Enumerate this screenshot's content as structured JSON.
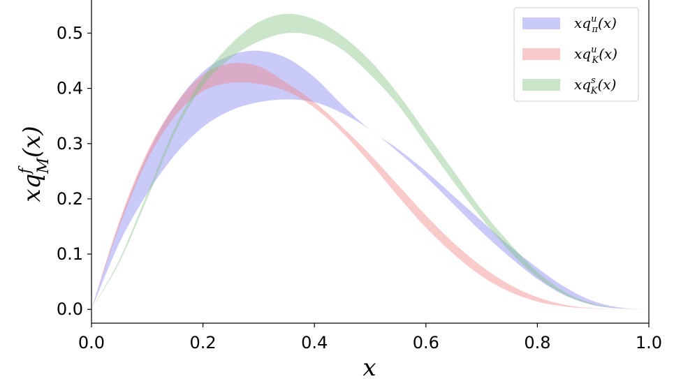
{
  "chart_data": {
    "type": "area",
    "title": "",
    "xlabel": "x",
    "ylabel": {
      "base": "xq",
      "sup": "f",
      "sub": "M",
      "tail": "(x)"
    },
    "xlim": [
      0.0,
      1.0
    ],
    "ylim": [
      -0.025,
      0.56
    ],
    "xticks": [
      "0.0",
      "0.2",
      "0.4",
      "0.6",
      "0.8",
      "1.0"
    ],
    "yticks": [
      "0.0",
      "0.1",
      "0.2",
      "0.3",
      "0.4",
      "0.5"
    ],
    "grid": false,
    "legend_position": "top-right",
    "x": [
      0.0,
      0.05,
      0.1,
      0.15,
      0.2,
      0.25,
      0.3,
      0.35,
      0.4,
      0.45,
      0.5,
      0.55,
      0.6,
      0.65,
      0.7,
      0.75,
      0.8,
      0.85,
      0.9,
      0.95,
      1.0
    ],
    "series": [
      {
        "label": {
          "base": "xq",
          "sup": "u",
          "sub": "π",
          "tail": "(x)"
        },
        "color": "#8080f0",
        "lower": [
          0.0,
          0.12,
          0.21,
          0.28,
          0.33,
          0.36,
          0.375,
          0.38,
          0.375,
          0.355,
          0.325,
          0.285,
          0.24,
          0.19,
          0.14,
          0.095,
          0.055,
          0.025,
          0.008,
          0.0015,
          0.0
        ],
        "upper": [
          0.0,
          0.155,
          0.28,
          0.37,
          0.43,
          0.46,
          0.468,
          0.455,
          0.42,
          0.37,
          0.325,
          0.29,
          0.25,
          0.205,
          0.16,
          0.115,
          0.075,
          0.04,
          0.015,
          0.003,
          0.0
        ]
      },
      {
        "label": {
          "base": "xq",
          "sup": "u",
          "sub": "K",
          "tail": "(x)"
        },
        "color": "#f08080",
        "lower": [
          0.0,
          0.15,
          0.27,
          0.35,
          0.395,
          0.41,
          0.408,
          0.395,
          0.365,
          0.32,
          0.265,
          0.205,
          0.148,
          0.1,
          0.06,
          0.032,
          0.014,
          0.005,
          0.0012,
          0.0002,
          0.0
        ],
        "upper": [
          0.0,
          0.16,
          0.285,
          0.37,
          0.425,
          0.445,
          0.44,
          0.41,
          0.375,
          0.33,
          0.28,
          0.225,
          0.17,
          0.12,
          0.078,
          0.045,
          0.022,
          0.008,
          0.002,
          0.0003,
          0.0
        ]
      },
      {
        "label": {
          "base": "xq",
          "sup": "s",
          "sub": "K",
          "tail": "(x)"
        },
        "color": "#80c080",
        "lower": [
          0.0,
          0.085,
          0.2,
          0.32,
          0.405,
          0.455,
          0.485,
          0.5,
          0.495,
          0.47,
          0.425,
          0.37,
          0.3,
          0.23,
          0.165,
          0.105,
          0.058,
          0.026,
          0.008,
          0.0012,
          0.0
        ],
        "upper": [
          0.0,
          0.09,
          0.21,
          0.33,
          0.42,
          0.48,
          0.52,
          0.535,
          0.525,
          0.495,
          0.45,
          0.39,
          0.32,
          0.25,
          0.18,
          0.12,
          0.068,
          0.031,
          0.01,
          0.0015,
          0.0
        ]
      }
    ]
  }
}
